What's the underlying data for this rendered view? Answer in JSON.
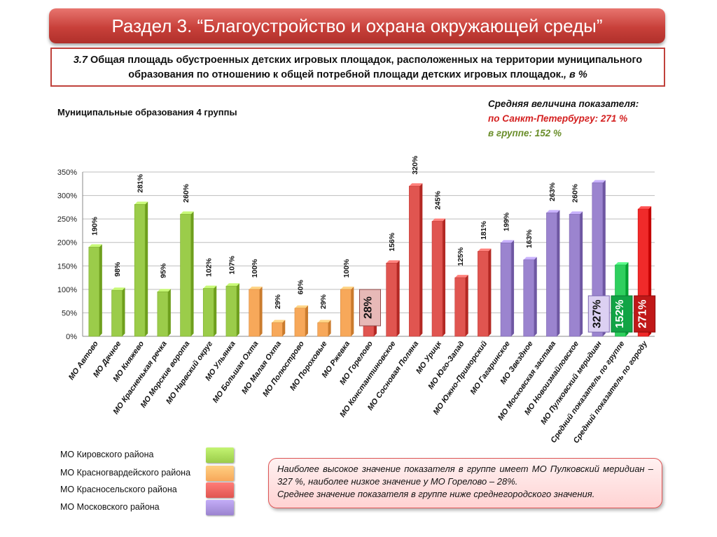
{
  "header": {
    "title": "Раздел 3. “Благоустройство и охрана окружающей среды”"
  },
  "subtitle": {
    "number": "3.7",
    "text": " Общая площадь обустроенных детских игровых площадок, расположенных на территории муниципального образования по отношению к общей потребной площади детских игровых площадок.",
    "unit": ", в %"
  },
  "group_label": "Муниципальные образования 4 группы",
  "averages": {
    "heading": "Средняя величина показателя:",
    "city": "по Санкт-Петербургу:  271 %",
    "group": "в группе:  152 %"
  },
  "colors": {
    "kirovsky": "#9bcc4a",
    "krasnogvardeisky": "#f7a85a",
    "krasnoselsky": "#e05550",
    "moskovsky": "#9b84cf",
    "group_avg": "#2fcf5e",
    "city_avg": "#f02a2a"
  },
  "chart_data": {
    "type": "bar",
    "ylim": [
      0,
      350
    ],
    "yticks": [
      "0%",
      "50%",
      "100%",
      "150%",
      "200%",
      "250%",
      "300%",
      "350%"
    ],
    "categories": [
      "МО Автово",
      "МО Дачное",
      "МО Княжево",
      "МО Красненькая речка",
      "МО Морские ворота",
      "МО Нарвский округ",
      "МО Ульянка",
      "МО Большая Охта",
      "МО Малая Охта",
      "МО Полюстрово",
      "МО Пороховые",
      "МО Ржевка",
      "МО Горелово",
      "МО Константиновское",
      "МО Сосновая Поляна",
      "МО Урицк",
      "МО Юго-Запад",
      "МО Южно-Приморский",
      "МО Гагаринское",
      "МО Звездное",
      "МО Московская застава",
      "МО Новоизмайловское",
      "МО Пулковский меридиан",
      "Средний показатель по группе",
      "Средний показатель по городу"
    ],
    "values": [
      190,
      98,
      281,
      95,
      260,
      102,
      107,
      100,
      29,
      60,
      29,
      100,
      28,
      156,
      320,
      245,
      125,
      181,
      199,
      163,
      263,
      260,
      327,
      152,
      271
    ],
    "labels": [
      "190%",
      "98%",
      "281%",
      "95%",
      "260%",
      "102%",
      "107%",
      "100%",
      "29%",
      "60%",
      "29%",
      "100%",
      "28%",
      "156%",
      "320%",
      "245%",
      "125%",
      "181%",
      "199%",
      "163%",
      "263%",
      "260%",
      "327%",
      "152%",
      "271%"
    ],
    "groups": [
      "kirovsky",
      "kirovsky",
      "kirovsky",
      "kirovsky",
      "kirovsky",
      "kirovsky",
      "kirovsky",
      "krasnogvardeisky",
      "krasnogvardeisky",
      "krasnogvardeisky",
      "krasnogvardeisky",
      "krasnogvardeisky",
      "krasnoselsky",
      "krasnoselsky",
      "krasnoselsky",
      "krasnoselsky",
      "krasnoselsky",
      "krasnoselsky",
      "moskovsky",
      "moskovsky",
      "moskovsky",
      "moskovsky",
      "moskovsky",
      "group_avg",
      "city_avg"
    ],
    "highlighted": [
      "28%",
      "327%",
      "152%",
      "271%"
    ],
    "grid": true,
    "legend": [
      {
        "label": "МО Кировского района",
        "group": "kirovsky"
      },
      {
        "label": "МО Красногвардейского района",
        "group": "krasnogvardeisky"
      },
      {
        "label": "МО Красносельского района",
        "group": "krasnoselsky"
      },
      {
        "label": "МО Московского района",
        "group": "moskovsky"
      }
    ]
  },
  "note": {
    "line1": "Наиболее высокое значение показателя в группе имеет МО Пулковский меридиан – 327 %, наиболее низкое значение у МО Горелово – 28%.",
    "line2": "Среднее значение показателя в группе ниже среднегородского значения."
  }
}
